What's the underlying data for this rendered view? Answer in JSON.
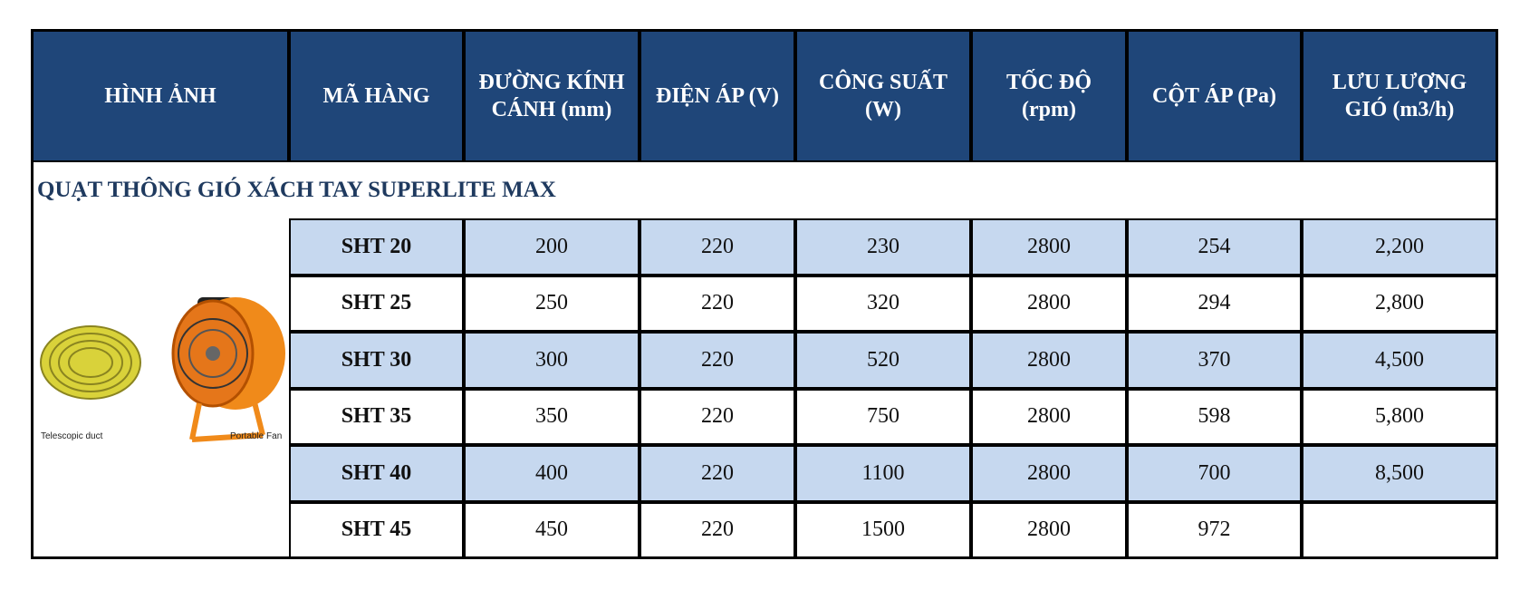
{
  "table": {
    "headers": [
      "HÌNH ẢNH",
      "MÃ HÀNG",
      "ĐƯỜNG KÍNH CÁNH (mm)",
      "ĐIỆN ÁP (V)",
      "CÔNG SUẤT (W)",
      "TỐC ĐỘ (rpm)",
      "CỘT ÁP (Pa)",
      "LƯU LƯỢNG GIÓ (m3/h)"
    ],
    "section": "QUẠT THÔNG GIÓ XÁCH TAY SUPERLITE MAX",
    "image_captions": [
      "Telescopic duct",
      "Portable Fan"
    ],
    "rows": [
      [
        "SHT 20",
        "200",
        "220",
        "230",
        "2800",
        "254",
        "2,200"
      ],
      [
        "SHT 25",
        "250",
        "220",
        "320",
        "2800",
        "294",
        "2,800"
      ],
      [
        "SHT 30",
        "300",
        "220",
        "520",
        "2800",
        "370",
        "4,500"
      ],
      [
        "SHT 35",
        "350",
        "220",
        "750",
        "2800",
        "598",
        "5,800"
      ],
      [
        "SHT 40",
        "400",
        "220",
        "1100",
        "2800",
        "700",
        "8,500"
      ],
      [
        "SHT 45",
        "450",
        "220",
        "1500",
        "2800",
        "972",
        null
      ]
    ]
  }
}
